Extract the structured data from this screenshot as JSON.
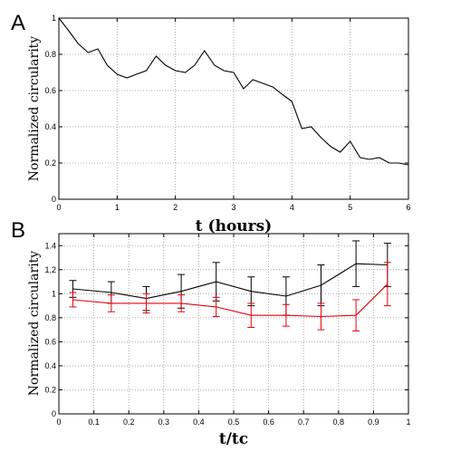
{
  "chart_data": [
    {
      "type": "line",
      "panel_label": "A",
      "xlabel": "t (hours)",
      "ylabel": "Normalized circularity",
      "xlim": [
        0,
        6
      ],
      "ylim": [
        0,
        1
      ],
      "xticks": [
        0,
        1,
        2,
        3,
        4,
        5,
        6
      ],
      "yticks": [
        0,
        0.2,
        0.4,
        0.6,
        0.8,
        1
      ],
      "grid": true,
      "series": [
        {
          "color": "#000000",
          "x": [
            0,
            0.17,
            0.33,
            0.5,
            0.67,
            0.83,
            1.0,
            1.17,
            1.33,
            1.5,
            1.67,
            1.83,
            2.0,
            2.17,
            2.33,
            2.5,
            2.67,
            2.83,
            3.0,
            3.17,
            3.33,
            3.5,
            3.67,
            3.83,
            4.0,
            4.17,
            4.33,
            4.5,
            4.67,
            4.83,
            5.0,
            5.17,
            5.33,
            5.5,
            5.67,
            5.83,
            6.0
          ],
          "y": [
            1.0,
            0.93,
            0.86,
            0.81,
            0.83,
            0.74,
            0.69,
            0.67,
            0.69,
            0.71,
            0.79,
            0.74,
            0.71,
            0.7,
            0.74,
            0.82,
            0.74,
            0.71,
            0.7,
            0.61,
            0.66,
            0.64,
            0.62,
            0.58,
            0.54,
            0.39,
            0.4,
            0.34,
            0.29,
            0.26,
            0.32,
            0.23,
            0.22,
            0.23,
            0.2,
            0.2,
            0.19
          ]
        }
      ]
    },
    {
      "type": "line",
      "panel_label": "B",
      "xlabel": "t/tc",
      "ylabel": "Normalized circularity",
      "xlim": [
        0,
        1
      ],
      "ylim": [
        0,
        1.5
      ],
      "xticks": [
        0,
        0.1,
        0.2,
        0.3,
        0.4,
        0.5,
        0.6,
        0.7,
        0.8,
        0.9,
        1
      ],
      "yticks": [
        0,
        0.2,
        0.4,
        0.6,
        0.8,
        1,
        1.2,
        1.4
      ],
      "grid": true,
      "series": [
        {
          "color": "#000000",
          "x": [
            0.04,
            0.15,
            0.25,
            0.35,
            0.45,
            0.55,
            0.65,
            0.75,
            0.85,
            0.94
          ],
          "y": [
            1.04,
            1.01,
            0.96,
            1.02,
            1.1,
            1.02,
            0.98,
            1.07,
            1.25,
            1.24
          ],
          "err": [
            0.07,
            0.09,
            0.1,
            0.14,
            0.16,
            0.12,
            0.16,
            0.17,
            0.19,
            0.18
          ]
        },
        {
          "color": "#e8000b",
          "x": [
            0.04,
            0.15,
            0.25,
            0.35,
            0.45,
            0.55,
            0.65,
            0.75,
            0.85,
            0.94
          ],
          "y": [
            0.95,
            0.92,
            0.92,
            0.92,
            0.89,
            0.82,
            0.82,
            0.81,
            0.82,
            1.08
          ],
          "err": [
            0.06,
            0.07,
            0.08,
            0.07,
            0.08,
            0.1,
            0.09,
            0.11,
            0.13,
            0.18
          ]
        }
      ]
    }
  ]
}
